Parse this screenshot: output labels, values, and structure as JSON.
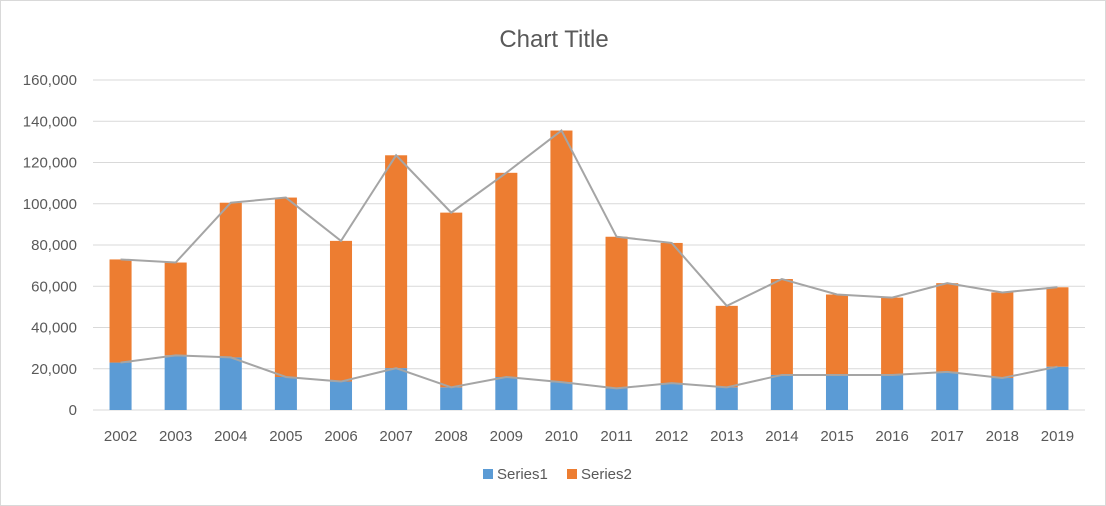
{
  "chart_data": {
    "type": "bar",
    "stacked": true,
    "title": "Chart Title",
    "xlabel": "",
    "ylabel": "",
    "categories": [
      "2002",
      "2003",
      "2004",
      "2005",
      "2006",
      "2007",
      "2008",
      "2009",
      "2010",
      "2011",
      "2012",
      "2013",
      "2014",
      "2015",
      "2016",
      "2017",
      "2018",
      "2019"
    ],
    "series": [
      {
        "name": "Series1",
        "color": "#5b9bd5",
        "values": [
          23000,
          26500,
          25500,
          16000,
          13800,
          20300,
          11000,
          16000,
          13500,
          10500,
          13000,
          11000,
          17000,
          17000,
          17000,
          18500,
          15500,
          21000
        ]
      },
      {
        "name": "Series2",
        "color": "#ed7d31",
        "values": [
          50000,
          45000,
          75000,
          87000,
          68200,
          103200,
          84700,
          99000,
          122000,
          73500,
          68000,
          39500,
          46500,
          39000,
          37500,
          43000,
          41500,
          38500
        ]
      }
    ],
    "line_overlay": {
      "color": "#a5a5a5",
      "description_series": [
        "Series1",
        "Series1+Series2"
      ]
    },
    "ylim": [
      0,
      160000
    ],
    "yticks": [
      0,
      20000,
      40000,
      60000,
      80000,
      100000,
      120000,
      140000,
      160000
    ],
    "ytick_labels": [
      "0",
      "20,000",
      "40,000",
      "60,000",
      "80,000",
      "100,000",
      "120,000",
      "140,000",
      "160,000"
    ],
    "grid": true,
    "legend": "bottom",
    "gridline_color": "#d9d9d9"
  }
}
